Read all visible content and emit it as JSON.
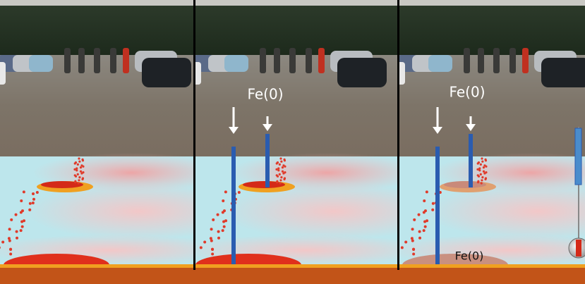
{
  "annotations": [
    "Fe(0)",
    "Fe(0)",
    "Fe(0)"
  ]
}
